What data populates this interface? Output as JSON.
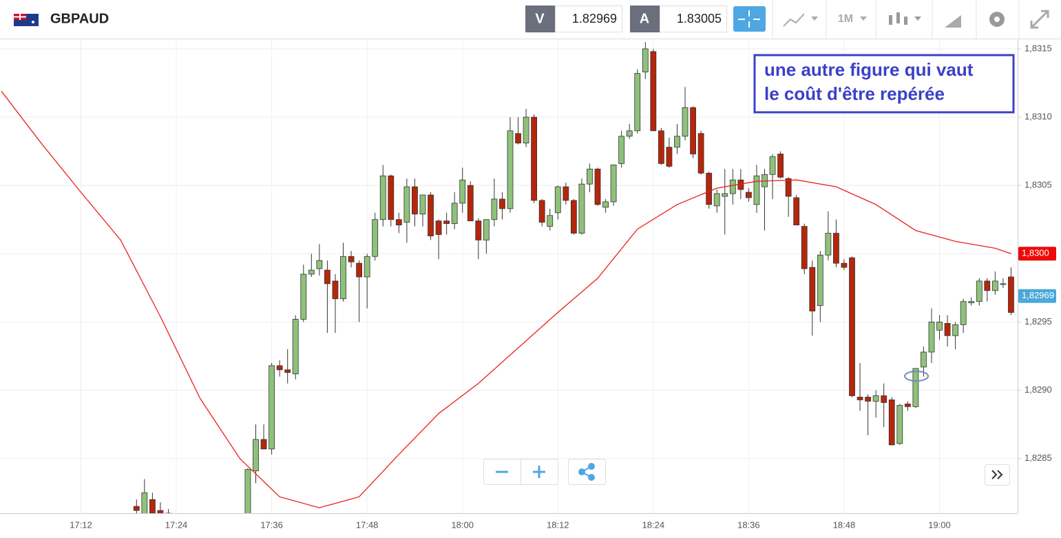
{
  "header": {
    "symbol": "GBPAUD",
    "bid_label": "V",
    "bid": "1.82969",
    "ask_label": "A",
    "ask": "1.83005",
    "timeframe": "1M"
  },
  "chart_data": {
    "type": "candlestick",
    "annotation": [
      "une autre figure qui vaut",
      "le coût d'être repérée"
    ],
    "x": [
      "17:19",
      "17:20",
      "17:21",
      "17:22",
      "17:23",
      "17:33",
      "17:34",
      "17:35",
      "17:36",
      "17:37",
      "17:38",
      "17:39",
      "17:40",
      "17:41",
      "17:42",
      "17:43",
      "17:44",
      "17:45",
      "17:46",
      "17:47",
      "17:48",
      "17:49",
      "17:50",
      "17:51",
      "17:52",
      "17:53",
      "17:54",
      "17:55",
      "17:56",
      "17:57",
      "17:58",
      "17:59",
      "18:00",
      "18:01",
      "18:02",
      "18:03",
      "18:04",
      "18:05",
      "18:06",
      "18:07",
      "18:08",
      "18:09",
      "18:10",
      "18:11",
      "18:12",
      "18:13",
      "18:14",
      "18:15",
      "18:16",
      "18:17",
      "18:18",
      "18:19",
      "18:20",
      "18:21",
      "18:22",
      "18:23",
      "18:24",
      "18:25",
      "18:26",
      "18:27",
      "18:28",
      "18:29",
      "18:30",
      "18:31",
      "18:32",
      "18:33",
      "18:34",
      "18:35",
      "18:36",
      "18:37",
      "18:38",
      "18:39",
      "18:40",
      "18:41",
      "18:42",
      "18:43",
      "18:44",
      "18:45",
      "18:46",
      "18:47",
      "18:48",
      "18:49",
      "18:50",
      "18:51",
      "18:52",
      "18:53",
      "18:54",
      "18:55",
      "18:56",
      "18:57",
      "18:58",
      "18:59",
      "19:00",
      "19:01",
      "19:02",
      "19:03",
      "19:04",
      "19:05",
      "19:06",
      "19:07",
      "19:08",
      "19:09"
    ],
    "open": [
      1.82815,
      1.828,
      1.8282,
      1.82812,
      1.8281,
      1.828,
      1.82841,
      1.82864,
      1.82857,
      1.82918,
      1.82915,
      1.82912,
      1.82952,
      1.82985,
      1.82989,
      1.82988,
      1.8298,
      1.82967,
      1.82998,
      1.82993,
      1.82983,
      1.82998,
      1.83025,
      1.83057,
      1.83025,
      1.83023,
      1.83049,
      1.83029,
      1.83043,
      1.83024,
      1.83024,
      1.83022,
      1.83037,
      1.8305,
      1.83024,
      1.8301,
      1.83025,
      1.8304,
      1.83033,
      1.83088,
      1.83081,
      1.831,
      1.83039,
      1.8302,
      1.8303,
      1.83049,
      1.83039,
      1.83015,
      1.83051,
      1.83062,
      1.83034,
      1.83038,
      1.83066,
      1.83086,
      1.8309,
      1.83133,
      1.83148,
      1.8309,
      1.83078,
      1.83078,
      1.83086,
      1.83107,
      1.83088,
      1.83059,
      1.83035,
      1.83042,
      1.83044,
      1.83054,
      1.83045,
      1.83036,
      1.83049,
      1.83058,
      1.83073,
      1.83055,
      1.83041,
      1.8302,
      1.8299,
      1.82962,
      1.82999,
      1.83015,
      1.82993,
      1.82997,
      1.82895,
      1.82895,
      1.82892,
      1.82896,
      1.82893,
      1.82861,
      1.8289,
      1.82888,
      1.82917,
      1.82928,
      1.82944,
      1.82949,
      1.8294,
      1.82948,
      1.82964,
      1.82965,
      1.8298,
      1.82973,
      1.82978,
      1.82983
    ],
    "high": [
      1.8282,
      1.82835,
      1.82825,
      1.82818,
      1.82813,
      1.82843,
      1.82875,
      1.82875,
      1.8292,
      1.82922,
      1.8293,
      1.82955,
      1.82992,
      1.83,
      1.83007,
      1.82995,
      1.82985,
      1.83008,
      1.83002,
      1.82995,
      1.83,
      1.8303,
      1.83065,
      1.83058,
      1.8303,
      1.83055,
      1.83055,
      1.83043,
      1.83045,
      1.83025,
      1.8303,
      1.83045,
      1.83063,
      1.83053,
      1.83026,
      1.83025,
      1.83055,
      1.83045,
      1.831,
      1.831,
      1.83106,
      1.83102,
      1.8304,
      1.83033,
      1.8305,
      1.83052,
      1.8304,
      1.83055,
      1.83066,
      1.83063,
      1.8304,
      1.83065,
      1.8309,
      1.83095,
      1.83135,
      1.83155,
      1.8315,
      1.83092,
      1.83085,
      1.83095,
      1.83122,
      1.83108,
      1.8309,
      1.8306,
      1.83047,
      1.83062,
      1.83062,
      1.83062,
      1.83048,
      1.83065,
      1.83062,
      1.83073,
      1.83075,
      1.83056,
      1.83043,
      1.83022,
      1.82995,
      1.83002,
      1.83031,
      1.83025,
      1.82996,
      1.82998,
      1.8292,
      1.82897,
      1.829,
      1.82905,
      1.82895,
      1.8289,
      1.82892,
      1.82916,
      1.82932,
      1.8296,
      1.82955,
      1.82955,
      1.8295,
      1.82967,
      1.82968,
      1.82982,
      1.82982,
      1.82987,
      1.82982,
      1.8299
    ],
    "low": [
      1.828,
      1.82795,
      1.828,
      1.828,
      1.828,
      1.82795,
      1.82832,
      1.82857,
      1.82853,
      1.8291,
      1.82905,
      1.82908,
      1.8295,
      1.82983,
      1.82984,
      1.82942,
      1.82942,
      1.82965,
      1.8299,
      1.8295,
      1.8296,
      1.82995,
      1.8302,
      1.8302,
      1.83015,
      1.83008,
      1.8302,
      1.8302,
      1.8301,
      1.82996,
      1.83014,
      1.83018,
      1.8303,
      1.83024,
      1.82996,
      1.83,
      1.8302,
      1.83025,
      1.8303,
      1.8308,
      1.83078,
      1.83037,
      1.8302,
      1.83017,
      1.83025,
      1.83036,
      1.83014,
      1.83014,
      1.83045,
      1.83035,
      1.8303,
      1.83035,
      1.83063,
      1.83084,
      1.83088,
      1.83128,
      1.8309,
      1.83065,
      1.83063,
      1.83073,
      1.83083,
      1.8307,
      1.83058,
      1.83033,
      1.8303,
      1.83014,
      1.83036,
      1.8304,
      1.83038,
      1.8303,
      1.83017,
      1.8304,
      1.83055,
      1.83027,
      1.83021,
      1.82985,
      1.8294,
      1.8295,
      1.82995,
      1.8299,
      1.82988,
      1.82895,
      1.82885,
      1.82867,
      1.8288,
      1.82873,
      1.8286,
      1.8286,
      1.82885,
      1.82887,
      1.8291,
      1.8292,
      1.82937,
      1.82932,
      1.8293,
      1.82942,
      1.82962,
      1.82962,
      1.82965,
      1.8297,
      1.82975,
      1.82955
    ],
    "close": [
      1.82812,
      1.82825,
      1.8281,
      1.82808,
      1.82805,
      1.82842,
      1.82864,
      1.82857,
      1.82918,
      1.82915,
      1.82913,
      1.82952,
      1.82985,
      1.82988,
      1.82995,
      1.82978,
      1.82967,
      1.82998,
      1.82994,
      1.82983,
      1.82998,
      1.83025,
      1.83057,
      1.83025,
      1.83021,
      1.83049,
      1.83029,
      1.83043,
      1.83013,
      1.83014,
      1.83022,
      1.83037,
      1.83054,
      1.83024,
      1.8301,
      1.83025,
      1.8304,
      1.83033,
      1.8309,
      1.83081,
      1.831,
      1.83039,
      1.83023,
      1.83028,
      1.83049,
      1.83039,
      1.83015,
      1.83051,
      1.83062,
      1.83036,
      1.83038,
      1.83065,
      1.83086,
      1.8309,
      1.83132,
      1.8315,
      1.8309,
      1.83066,
      1.83064,
      1.83086,
      1.83107,
      1.83073,
      1.83059,
      1.83036,
      1.83044,
      1.83044,
      1.83054,
      1.83047,
      1.83041,
      1.83057,
      1.83058,
      1.83071,
      1.83056,
      1.83042,
      1.83021,
      1.82989,
      1.82958,
      1.82999,
      1.83015,
      1.82993,
      1.8299,
      1.82896,
      1.82893,
      1.82892,
      1.82896,
      1.82891,
      1.8286,
      1.82889,
      1.82888,
      1.82916,
      1.82928,
      1.8295,
      1.8295,
      1.8294,
      1.82948,
      1.82965,
      1.82965,
      1.8298,
      1.82973,
      1.8298,
      1.82978,
      1.82957
    ],
    "up_color": "#8fc17a",
    "down_color": "#b5260c",
    "ma": {
      "color": "#e8201e",
      "x": [
        "17:02",
        "17:07",
        "17:12",
        "17:17",
        "17:22",
        "17:27",
        "17:32",
        "17:37",
        "17:42",
        "17:47",
        "17:52",
        "17:57",
        "18:02",
        "18:07",
        "18:12",
        "18:17",
        "18:22",
        "18:27",
        "18:32",
        "18:37",
        "18:42",
        "18:47",
        "18:52",
        "18:57",
        "19:02",
        "19:07",
        "19:09"
      ],
      "values": [
        1.83119,
        1.83081,
        1.83045,
        1.8301,
        1.82954,
        1.82894,
        1.8285,
        1.82822,
        1.82814,
        1.82822,
        1.82853,
        1.82883,
        1.82905,
        1.82931,
        1.82957,
        1.82982,
        1.83018,
        1.83036,
        1.83048,
        1.83053,
        1.83054,
        1.83049,
        1.83036,
        1.83017,
        1.83009,
        1.83004,
        1.83
      ]
    },
    "ma_label": {
      "value": 1.83,
      "label": "1,8300"
    },
    "price_label": {
      "value": 1.82969,
      "label": "1,82969"
    },
    "xlim": [
      "17:02",
      "19:10"
    ],
    "ylim": [
      1.8281,
      1.83157
    ],
    "xticks": [
      "17:12",
      "17:24",
      "17:36",
      "17:48",
      "18:00",
      "18:12",
      "18:24",
      "18:36",
      "18:48",
      "19:00"
    ],
    "yticks": [
      {
        "value": 1.8285,
        "label": "1,8285"
      },
      {
        "value": 1.829,
        "label": "1,8290"
      },
      {
        "value": 1.8295,
        "label": "1,8295"
      },
      {
        "value": 1.83,
        "label": "1,8300"
      },
      {
        "value": 1.8305,
        "label": "1,8305"
      },
      {
        "value": 1.831,
        "label": "1,8310"
      },
      {
        "value": 1.8315,
        "label": "1,8315"
      }
    ],
    "grid": true
  }
}
